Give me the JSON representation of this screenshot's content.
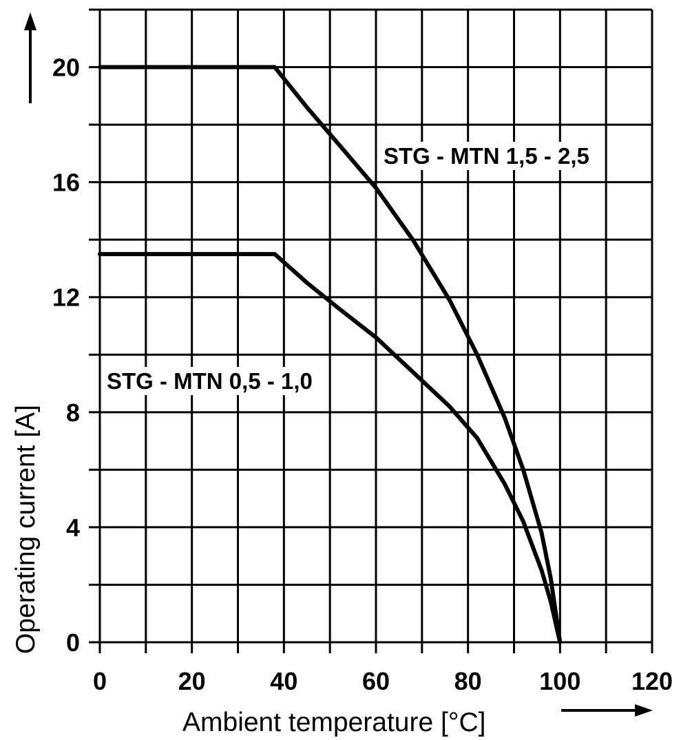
{
  "chart_data": {
    "type": "line",
    "xlabel": "Ambient temperature [°C]",
    "ylabel": "Operating current [A]",
    "xlim": [
      0,
      120
    ],
    "ylim": [
      0,
      22
    ],
    "x_ticks": [
      0,
      20,
      40,
      60,
      80,
      100,
      120
    ],
    "y_ticks": [
      0,
      4,
      8,
      12,
      16,
      20
    ],
    "x_gridlines": [
      0,
      10,
      20,
      30,
      40,
      50,
      60,
      70,
      80,
      90,
      100,
      110,
      120
    ],
    "y_gridlines": [
      0,
      2,
      4,
      6,
      8,
      10,
      12,
      14,
      16,
      18,
      20,
      22
    ],
    "grid": true,
    "series": [
      {
        "name": "STG - MTN 1,5 - 2,5",
        "x": [
          0,
          38,
          45,
          52,
          60,
          68,
          76,
          82,
          88,
          92,
          96,
          98,
          100
        ],
        "y": [
          20,
          20,
          18.6,
          17.3,
          15.8,
          14,
          11.9,
          10,
          7.8,
          6,
          3.8,
          2.2,
          0
        ]
      },
      {
        "name": "STG - MTN 0,5 - 1,0",
        "x": [
          0,
          38,
          45,
          52,
          60,
          68,
          76,
          82,
          88,
          92,
          96,
          98,
          100
        ],
        "y": [
          13.5,
          13.5,
          12.5,
          11.6,
          10.6,
          9.4,
          8.2,
          7.1,
          5.5,
          4.2,
          2.5,
          1.4,
          0
        ]
      }
    ]
  }
}
